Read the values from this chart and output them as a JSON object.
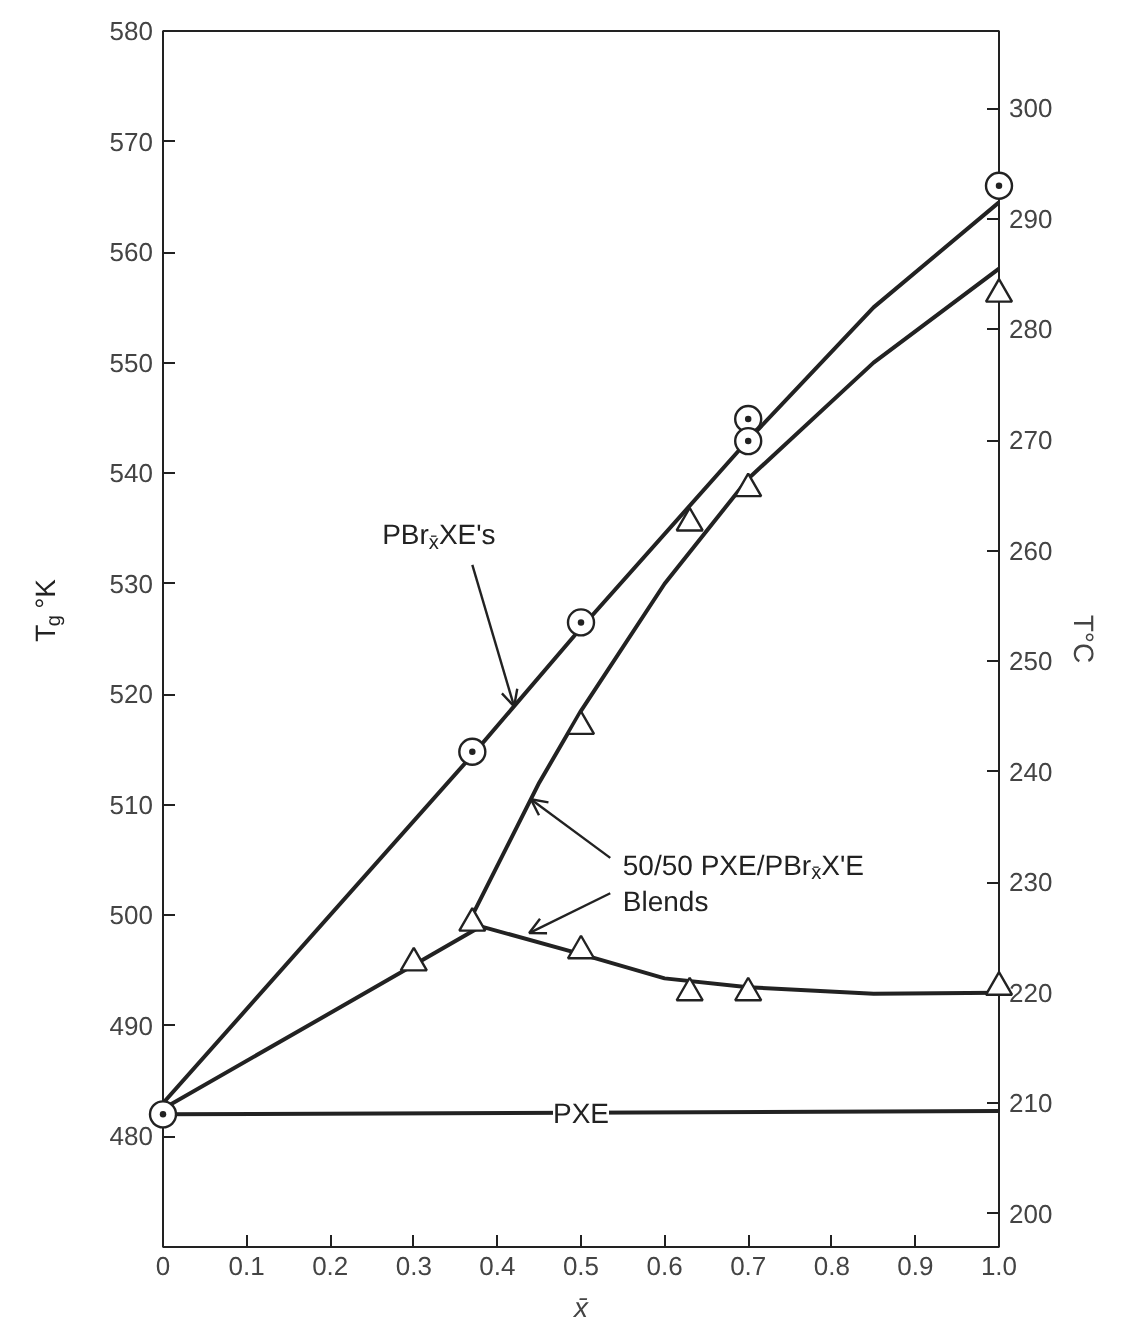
{
  "chart_data": {
    "type": "line",
    "xlabel": "x̄",
    "ylabel": "T$_{g}$ °K",
    "y2label": "T°C",
    "xlim": [
      0,
      1
    ],
    "ylim": [
      470,
      580
    ],
    "y2lim": [
      197,
      307
    ],
    "xticks": [
      0,
      0.1,
      0.2,
      0.3,
      0.4,
      0.5,
      0.6,
      0.7,
      0.8,
      0.9,
      {
        "value": 1,
        "label": "1.0"
      }
    ],
    "yticks": [
      480,
      490,
      500,
      510,
      520,
      530,
      540,
      550,
      560,
      570,
      580
    ],
    "y2ticks": [
      200,
      210,
      220,
      230,
      240,
      250,
      260,
      270,
      280,
      290,
      300
    ],
    "grid": false,
    "legend": false,
    "series": [
      {
        "type": "line",
        "color": "#222222",
        "x": [
          0,
          0.37,
          0.5,
          0.7,
          0.85,
          1.0
        ],
        "values": [
          483,
          514.5,
          526,
          543,
          555,
          564.5
        ]
      },
      {
        "type": "line",
        "color": "#222222",
        "x": [
          0.37,
          0.45,
          0.5,
          0.6,
          0.7,
          0.85,
          1.0
        ],
        "values": [
          500,
          512,
          518.5,
          530,
          539.5,
          550,
          558.5
        ]
      },
      {
        "type": "line",
        "color": "#222222",
        "x": [
          0,
          0.3,
          0.38,
          0.5,
          0.6,
          0.7,
          0.85,
          1.0
        ],
        "values": [
          482.5,
          495.5,
          499,
          496.5,
          494.3,
          493.5,
          492.9,
          493
        ]
      },
      {
        "type": "line",
        "name": "PXE",
        "color": "#222222",
        "x": [
          0,
          1.0
        ],
        "values": [
          482,
          482.3
        ]
      },
      {
        "type": "scatter",
        "marker": "circle",
        "color": "#222222",
        "x": [
          0,
          0.37,
          0.5,
          0.7,
          0.7,
          1.0
        ],
        "values": [
          482,
          514.8,
          526.5,
          544.9,
          542.9,
          566
        ]
      },
      {
        "type": "scatter",
        "marker": "triangle",
        "color": "#222222",
        "x": [
          0.3,
          0.37,
          0.5,
          0.63,
          0.7,
          1.0,
          0.5,
          0.63,
          0.7,
          1.0
        ],
        "values": [
          495.7,
          499.3,
          496.8,
          493,
          493,
          493.5,
          517.1,
          535.5,
          538.6,
          556.2
        ]
      }
    ],
    "annotations": [
      {
        "text": "PBr$_{x̄}$XE's",
        "x": 0.42,
        "y": 518.9
      },
      {
        "text": "50/50 PXE/PBr$_{x̄}$X'E",
        "x": 0.44,
        "y": 510.5
      },
      {
        "text": "Blends",
        "x": 0.438,
        "y": 498.4
      }
    ]
  }
}
